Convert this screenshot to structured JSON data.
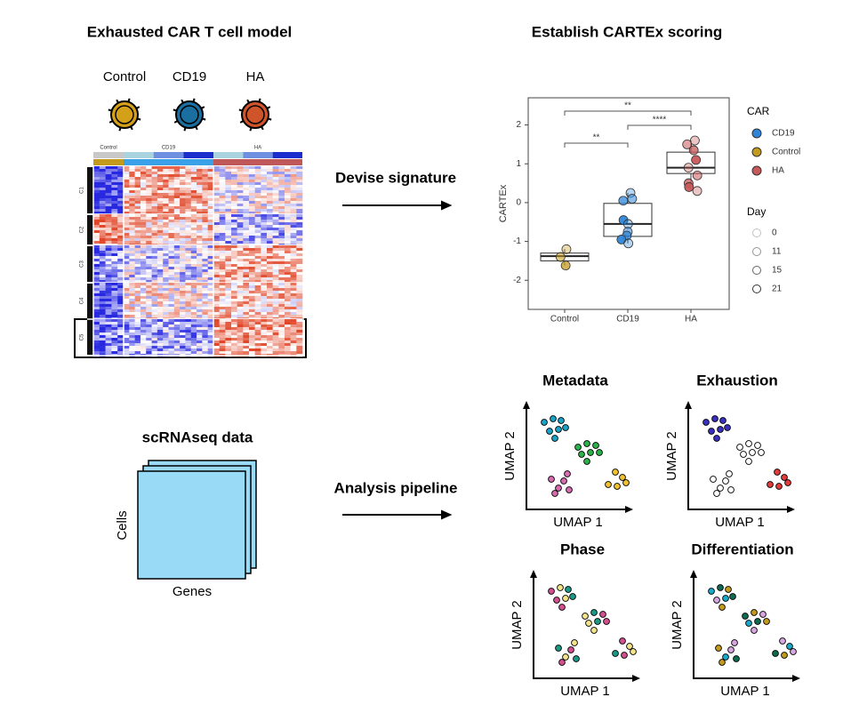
{
  "left_title": "Exhausted CAR T cell model",
  "cells": [
    "Control",
    "CD19",
    "HA"
  ],
  "heatmap": {
    "groups": [
      "Control",
      "CD19",
      "HA"
    ],
    "clusters": [
      "C1",
      "C2",
      "C3",
      "C4",
      "C5"
    ]
  },
  "arrow_labels": [
    "Devise signature",
    "Analysis pipeline"
  ],
  "right_title": "Establish CARTEx scoring",
  "chart_data": {
    "type": "box",
    "y_label": "CARTEx",
    "categories": [
      "Control",
      "CD19",
      "HA"
    ],
    "colors": [
      "#c49a1c",
      "#2f86d8",
      "#c8585a"
    ],
    "boxes": [
      {
        "whislo": -1.62,
        "q1": -1.5,
        "median": -1.38,
        "q3": -1.3,
        "whishi": -1.2
      },
      {
        "whislo": -1.05,
        "q1": -0.87,
        "median": -0.55,
        "q3": -0.02,
        "whishi": 0.25
      },
      {
        "whislo": 0.3,
        "q1": 0.75,
        "median": 0.9,
        "q3": 1.3,
        "whishi": 1.6
      }
    ],
    "points": [
      [
        -1.2,
        -1.4,
        -1.62
      ],
      [
        0.25,
        0.1,
        0.05,
        -0.45,
        -0.55,
        -0.75,
        -0.85,
        -0.95,
        -1.05
      ],
      [
        1.6,
        1.5,
        1.35,
        1.1,
        0.9,
        0.7,
        0.5,
        0.4,
        0.3
      ]
    ],
    "ylim": [
      -2.75,
      2.7
    ],
    "yticks": [
      -2,
      -1,
      0,
      1,
      2
    ],
    "annotations": [
      "**",
      "****",
      "**"
    ],
    "legend_title": "CAR",
    "legend": [
      "CD19",
      "Control",
      "HA"
    ],
    "legend_colors": [
      "#2f86d8",
      "#c49a1c",
      "#c8585a"
    ],
    "size_legend": {
      "title": "Day",
      "values": [
        0,
        11,
        15,
        21
      ]
    }
  },
  "scrnaseq": {
    "title": "scRNAseq data",
    "y_label": "Cells",
    "x_label": "Genes"
  },
  "umap": {
    "x_label": "UMAP 1",
    "y_label": "UMAP 2",
    "panels": [
      "Metadata",
      "Exhaustion",
      "Phase",
      "Differentiation"
    ]
  }
}
